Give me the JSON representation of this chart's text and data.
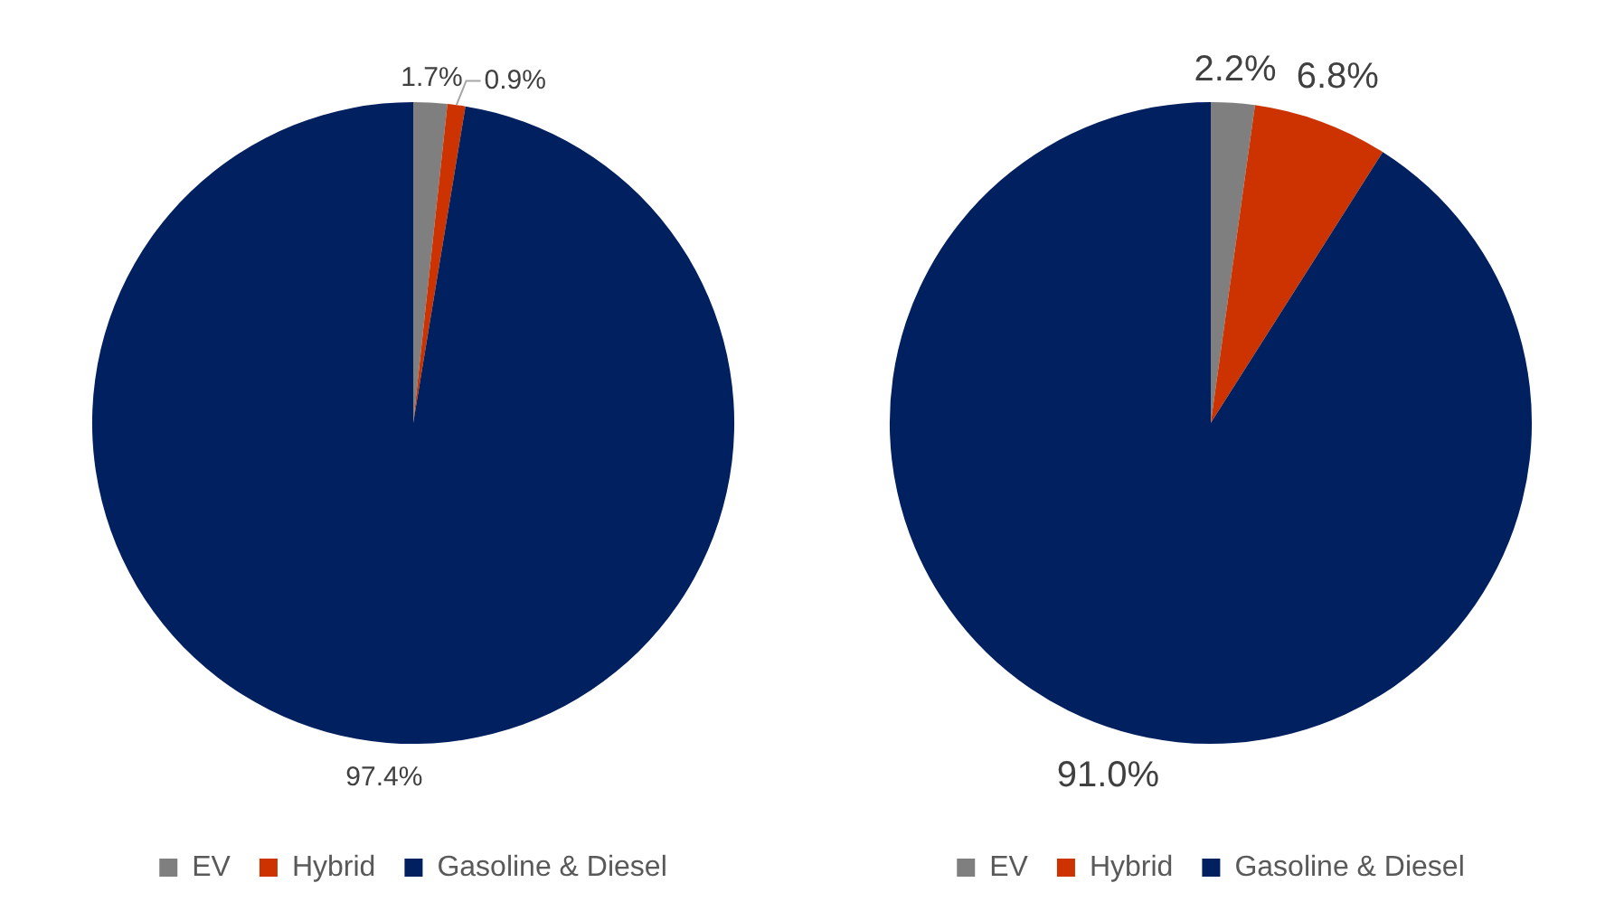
{
  "chart_data": [
    {
      "type": "pie",
      "categories": [
        "EV",
        "Hybrid",
        "Gasoline & Diesel"
      ],
      "values": [
        1.7,
        0.9,
        97.4
      ],
      "colors": [
        "#7f7f7f",
        "#cc3300",
        "#002060"
      ],
      "value_labels": [
        "1.7%",
        "0.9%",
        "97.4%"
      ],
      "legend": "bottom"
    },
    {
      "type": "pie",
      "categories": [
        "EV",
        "Hybrid",
        "Gasoline & Diesel"
      ],
      "values": [
        2.2,
        6.8,
        91.0
      ],
      "colors": [
        "#7f7f7f",
        "#cc3300",
        "#002060"
      ],
      "value_labels": [
        "2.2%",
        "6.8%",
        "91.0%"
      ],
      "legend": "bottom"
    }
  ]
}
